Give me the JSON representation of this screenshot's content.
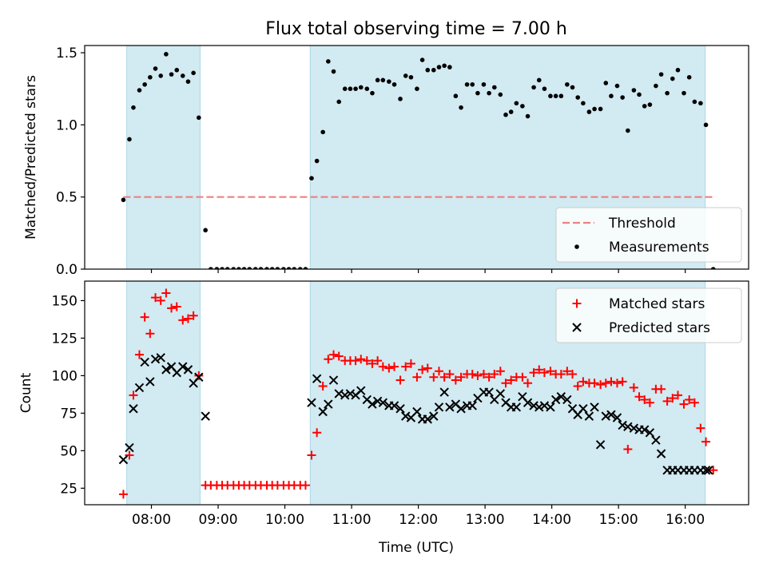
{
  "chart_data": {
    "type": "scatter",
    "title": "Flux total observing time = 7.00 h",
    "xlabel": "Time (UTC)",
    "x_unit": "hours UTC",
    "xlim": [
      7.0,
      16.95
    ],
    "xticks": [
      8,
      9,
      10,
      11,
      12,
      13,
      14,
      15,
      16
    ],
    "xtick_labels": [
      "08:00",
      "09:00",
      "10:00",
      "11:00",
      "12:00",
      "13:00",
      "14:00",
      "15:00",
      "16:00"
    ],
    "shaded_intervals": [
      [
        7.63,
        8.73
      ],
      [
        10.38,
        16.3
      ]
    ],
    "shade_color": "#add8e6",
    "panels": [
      {
        "id": "ratio",
        "ylabel": "Matched/Predicted stars",
        "ylim": [
          0,
          1.55
        ],
        "yticks": [
          0.0,
          0.5,
          1.0,
          1.5
        ],
        "ytick_labels": [
          "0.0",
          "0.5",
          "1.0",
          "1.5"
        ],
        "legend_position": "lower-right",
        "threshold": {
          "name": "Threshold",
          "y": 0.5,
          "x_range": [
            7.58,
            16.42
          ],
          "color": "#f08080",
          "style": "dashed"
        },
        "series": [
          {
            "name": "Measurements",
            "marker": "dot",
            "color": "#000000",
            "x": [
              7.58,
              7.67,
              7.73,
              7.82,
              7.9,
              7.98,
              8.06,
              8.14,
              8.22,
              8.3,
              8.38,
              8.47,
              8.55,
              8.63,
              8.71,
              8.81,
              8.89,
              8.98,
              9.06,
              9.14,
              9.23,
              9.31,
              9.39,
              9.47,
              9.56,
              9.64,
              9.73,
              9.81,
              9.89,
              9.98,
              10.06,
              10.14,
              10.23,
              10.31,
              10.4,
              10.48,
              10.57,
              10.65,
              10.73,
              10.81,
              10.9,
              10.98,
              11.06,
              11.14,
              11.23,
              11.31,
              11.39,
              11.47,
              11.56,
              11.64,
              11.73,
              11.81,
              11.89,
              11.98,
              12.06,
              12.14,
              12.23,
              12.31,
              12.39,
              12.47,
              12.56,
              12.64,
              12.73,
              12.81,
              12.89,
              12.98,
              13.06,
              13.14,
              13.23,
              13.31,
              13.39,
              13.47,
              13.56,
              13.64,
              13.73,
              13.81,
              13.89,
              13.98,
              14.06,
              14.14,
              14.23,
              14.31,
              14.39,
              14.47,
              14.56,
              14.64,
              14.73,
              14.81,
              14.89,
              14.98,
              15.06,
              15.14,
              15.23,
              15.31,
              15.39,
              15.47,
              15.56,
              15.64,
              15.73,
              15.81,
              15.89,
              15.98,
              16.06,
              16.14,
              16.23,
              16.31,
              16.42
            ],
            "y": [
              0.48,
              0.9,
              1.12,
              1.24,
              1.28,
              1.33,
              1.39,
              1.34,
              1.49,
              1.35,
              1.38,
              1.34,
              1.3,
              1.36,
              1.05,
              0.27,
              0.0,
              0.0,
              0.0,
              0.0,
              0.0,
              0.0,
              0.0,
              0.0,
              0.0,
              0.0,
              0.0,
              0.0,
              0.0,
              0.0,
              0.0,
              0.0,
              0.0,
              0.0,
              0.63,
              0.75,
              0.95,
              1.44,
              1.37,
              1.16,
              1.25,
              1.25,
              1.25,
              1.26,
              1.25,
              1.22,
              1.31,
              1.31,
              1.3,
              1.28,
              1.18,
              1.34,
              1.33,
              1.25,
              1.45,
              1.38,
              1.38,
              1.4,
              1.41,
              1.4,
              1.2,
              1.12,
              1.28,
              1.28,
              1.22,
              1.28,
              1.22,
              1.26,
              1.21,
              1.07,
              1.09,
              1.15,
              1.13,
              1.06,
              1.26,
              1.31,
              1.25,
              1.2,
              1.2,
              1.2,
              1.28,
              1.26,
              1.19,
              1.15,
              1.09,
              1.11,
              1.11,
              1.29,
              1.2,
              1.27,
              1.19,
              0.96,
              1.24,
              1.21,
              1.13,
              1.14,
              1.27,
              1.35,
              1.22,
              1.32,
              1.38,
              1.22,
              1.33,
              1.16,
              1.15,
              1.0,
              0.0
            ]
          }
        ]
      },
      {
        "id": "counts",
        "ylabel": "Count",
        "ylim": [
          14,
          163
        ],
        "yticks": [
          25,
          50,
          75,
          100,
          125,
          150
        ],
        "ytick_labels": [
          "25",
          "50",
          "75",
          "100",
          "125",
          "150"
        ],
        "legend_position": "upper-right",
        "series": [
          {
            "name": "Matched stars",
            "marker": "plus",
            "color": "#ff0000",
            "x": [
              7.58,
              7.67,
              7.73,
              7.82,
              7.9,
              7.98,
              8.06,
              8.14,
              8.22,
              8.3,
              8.38,
              8.47,
              8.55,
              8.63,
              8.71,
              8.81,
              8.89,
              8.98,
              9.06,
              9.14,
              9.23,
              9.31,
              9.39,
              9.47,
              9.56,
              9.64,
              9.73,
              9.81,
              9.89,
              9.98,
              10.06,
              10.14,
              10.23,
              10.31,
              10.4,
              10.48,
              10.57,
              10.65,
              10.73,
              10.81,
              10.9,
              10.98,
              11.06,
              11.14,
              11.23,
              11.31,
              11.39,
              11.47,
              11.56,
              11.64,
              11.73,
              11.81,
              11.89,
              11.98,
              12.06,
              12.14,
              12.23,
              12.31,
              12.39,
              12.47,
              12.56,
              12.64,
              12.73,
              12.81,
              12.89,
              12.98,
              13.06,
              13.14,
              13.23,
              13.31,
              13.39,
              13.47,
              13.56,
              13.64,
              13.73,
              13.81,
              13.89,
              13.98,
              14.06,
              14.14,
              14.23,
              14.31,
              14.39,
              14.47,
              14.56,
              14.64,
              14.73,
              14.81,
              14.89,
              14.98,
              15.06,
              15.14,
              15.23,
              15.31,
              15.39,
              15.47,
              15.56,
              15.64,
              15.73,
              15.81,
              15.89,
              15.98,
              16.06,
              16.14,
              16.23,
              16.31,
              16.42
            ],
            "y": [
              21,
              47,
              87,
              114,
              139,
              128,
              152,
              150,
              155,
              145,
              146,
              137,
              138,
              140,
              100,
              27,
              27,
              27,
              27,
              27,
              27,
              27,
              27,
              27,
              27,
              27,
              27,
              27,
              27,
              27,
              27,
              27,
              27,
              27,
              47,
              62,
              93,
              111,
              114,
              113,
              110,
              110,
              110,
              111,
              110,
              108,
              110,
              106,
              105,
              106,
              97,
              106,
              108,
              99,
              104,
              105,
              99,
              103,
              99,
              101,
              97,
              99,
              101,
              101,
              100,
              101,
              99,
              101,
              103,
              95,
              97,
              99,
              99,
              95,
              102,
              104,
              102,
              103,
              101,
              101,
              103,
              101,
              93,
              96,
              95,
              95,
              94,
              95,
              96,
              95,
              96,
              51,
              92,
              86,
              84,
              82,
              91,
              91,
              83,
              85,
              87,
              81,
              84,
              82,
              65,
              56,
              37
            ]
          },
          {
            "name": "Predicted stars",
            "marker": "x",
            "color": "#000000",
            "x": [
              7.58,
              7.67,
              7.73,
              7.82,
              7.9,
              7.98,
              8.06,
              8.14,
              8.22,
              8.3,
              8.38,
              8.47,
              8.55,
              8.63,
              8.71,
              8.81,
              10.4,
              10.48,
              10.57,
              10.65,
              10.73,
              10.81,
              10.9,
              10.98,
              11.06,
              11.14,
              11.23,
              11.31,
              11.39,
              11.47,
              11.56,
              11.64,
              11.73,
              11.81,
              11.89,
              11.98,
              12.06,
              12.14,
              12.23,
              12.31,
              12.39,
              12.47,
              12.56,
              12.64,
              12.73,
              12.81,
              12.89,
              12.98,
              13.06,
              13.14,
              13.23,
              13.31,
              13.39,
              13.47,
              13.56,
              13.64,
              13.73,
              13.81,
              13.89,
              13.98,
              14.06,
              14.14,
              14.23,
              14.31,
              14.39,
              14.47,
              14.56,
              14.64,
              14.73,
              14.81,
              14.89,
              14.98,
              15.06,
              15.14,
              15.23,
              15.31,
              15.39,
              15.47,
              15.56,
              15.64,
              15.73,
              15.81,
              15.89,
              15.98,
              16.06,
              16.14,
              16.23,
              16.31,
              16.35
            ],
            "y": [
              44,
              52,
              78,
              92,
              109,
              96,
              111,
              112,
              104,
              106,
              102,
              106,
              104,
              95,
              99,
              73,
              82,
              98,
              76,
              81,
              97,
              88,
              87,
              88,
              87,
              90,
              84,
              81,
              83,
              82,
              80,
              80,
              78,
              73,
              72,
              76,
              71,
              71,
              73,
              79,
              89,
              79,
              81,
              78,
              80,
              80,
              85,
              89,
              89,
              84,
              88,
              82,
              79,
              79,
              86,
              82,
              80,
              79,
              80,
              79,
              84,
              86,
              84,
              78,
              74,
              78,
              73,
              79,
              54,
              73,
              74,
              72,
              67,
              66,
              65,
              64,
              64,
              62,
              57,
              48,
              37,
              37,
              37,
              37,
              37,
              37,
              37,
              37,
              37
            ],
            "y_note": ""
          }
        ]
      }
    ]
  }
}
